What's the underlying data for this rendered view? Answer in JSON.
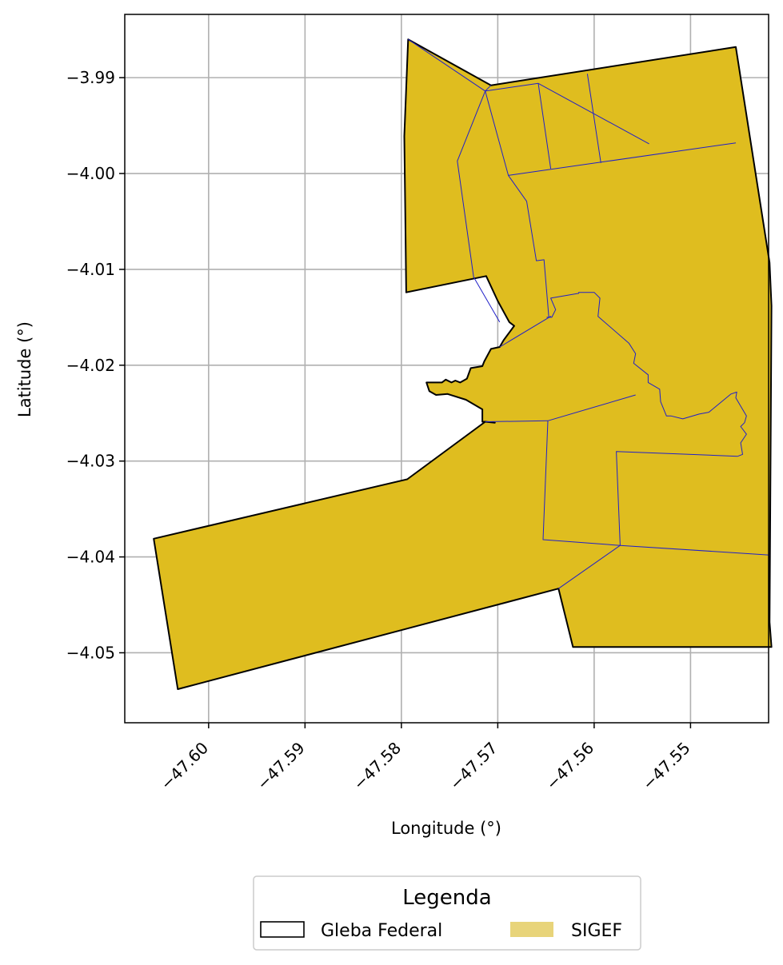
{
  "chart_data": {
    "type": "map",
    "xlabel": "Longitude (°)",
    "ylabel": "Latitude (°)",
    "xlim": [
      -47.6087,
      -47.5419
    ],
    "ylim": [
      -4.0573,
      -3.9834
    ],
    "xticks": [
      -47.6,
      -47.59,
      -47.58,
      -47.57,
      -47.56,
      -47.55
    ],
    "xtick_labels": [
      "−47.60",
      "−47.59",
      "−47.58",
      "−47.57",
      "−47.56",
      "−47.55"
    ],
    "yticks": [
      -3.99,
      -4.0,
      -4.01,
      -4.02,
      -4.03,
      -4.04,
      -4.05
    ],
    "ytick_labels": [
      "−3.99",
      "−4.00",
      "−4.01",
      "−4.02",
      "−4.03",
      "−4.04",
      "−4.05"
    ],
    "grid": true,
    "legend": {
      "title": "Legenda",
      "placement": "bottom-center",
      "entries": [
        {
          "label": "Gleba Federal",
          "style": "outline",
          "edge_color": "#000000"
        },
        {
          "label": "SIGEF",
          "style": "fill",
          "color": "#e8d47a"
        }
      ]
    },
    "layers": [
      {
        "name": "Gleba Federal",
        "fill": "#dfbd1f",
        "stroke": "#000000",
        "polygon": [
          [
            -47.5793,
            -3.986
          ],
          [
            -47.5707,
            -3.9908
          ],
          [
            -47.5453,
            -3.9868
          ],
          [
            -47.5418,
            -4.0093
          ],
          [
            -47.5416,
            -4.0138
          ],
          [
            -47.5418,
            -4.0468
          ],
          [
            -47.5416,
            -4.0494
          ],
          [
            -47.5622,
            -4.0494
          ],
          [
            -47.5637,
            -4.0433
          ],
          [
            -47.6032,
            -4.0538
          ],
          [
            -47.6057,
            -4.0381
          ],
          [
            -47.5794,
            -4.0319
          ],
          [
            -47.5713,
            -4.0259
          ],
          [
            -47.5703,
            -4.026
          ],
          [
            -47.5713,
            -4.0259
          ],
          [
            -47.5712,
            -4.0259
          ],
          [
            -47.5713,
            -4.0259
          ],
          [
            -47.5716,
            -4.0259
          ],
          [
            -47.5716,
            -4.0246
          ],
          [
            -47.5733,
            -4.0236
          ],
          [
            -47.5752,
            -4.023
          ],
          [
            -47.5764,
            -4.0231
          ],
          [
            -47.5771,
            -4.0227
          ],
          [
            -47.5774,
            -4.0218
          ],
          [
            -47.5758,
            -4.0218
          ],
          [
            -47.5754,
            -4.0215
          ],
          [
            -47.5748,
            -4.0218
          ],
          [
            -47.5744,
            -4.0216
          ],
          [
            -47.5739,
            -4.0218
          ],
          [
            -47.5732,
            -4.0214
          ],
          [
            -47.5728,
            -4.0203
          ],
          [
            -47.5716,
            -4.0201
          ],
          [
            -47.5714,
            -4.0196
          ],
          [
            -47.5707,
            -4.0183
          ],
          [
            -47.5698,
            -4.0181
          ],
          [
            -47.5694,
            -4.0174
          ],
          [
            -47.5683,
            -4.0159
          ],
          [
            -47.5688,
            -4.0155
          ],
          [
            -47.57,
            -4.0133
          ],
          [
            -47.5712,
            -4.0107
          ],
          [
            -47.5795,
            -4.0124
          ],
          [
            -47.5796,
            -4.004
          ],
          [
            -47.5797,
            -3.9961
          ]
        ]
      },
      {
        "name": "SIGEF",
        "fill": "none",
        "stroke": "#2020c8",
        "lines": [
          [
            [
              -47.5793,
              -3.986
            ],
            [
              -47.5713,
              -3.9914
            ]
          ],
          [
            [
              -47.5707,
              -3.9908
            ],
            [
              -47.5713,
              -3.9914
            ]
          ],
          [
            [
              -47.5713,
              -3.9914
            ],
            [
              -47.5658,
              -3.9906
            ],
            [
              -47.5543,
              -3.9969
            ]
          ],
          [
            [
              -47.5658,
              -3.9906
            ],
            [
              -47.5645,
              -3.9995
            ]
          ],
          [
            [
              -47.5607,
              -3.9896
            ],
            [
              -47.5593,
              -3.9989
            ]
          ],
          [
            [
              -47.5713,
              -3.9914
            ],
            [
              -47.5742,
              -3.9987
            ],
            [
              -47.5725,
              -4.0108
            ],
            [
              -47.5698,
              -4.0155
            ]
          ],
          [
            [
              -47.5713,
              -3.9914
            ],
            [
              -47.5689,
              -4.0002
            ],
            [
              -47.567,
              -4.0029
            ],
            [
              -47.566,
              -4.0091
            ],
            [
              -47.5652,
              -4.009
            ],
            [
              -47.5647,
              -4.015
            ],
            [
              -47.5649,
              -4.015
            ],
            [
              -47.5644,
              -4.015
            ],
            [
              -47.564,
              -4.0142
            ],
            [
              -47.5645,
              -4.013
            ],
            [
              -47.5616,
              -4.0125
            ],
            [
              -47.5616,
              -4.0124
            ],
            [
              -47.56,
              -4.0124
            ],
            [
              -47.5594,
              -4.013
            ],
            [
              -47.5596,
              -4.0149
            ],
            [
              -47.5564,
              -4.0177
            ],
            [
              -47.5557,
              -4.0188
            ],
            [
              -47.5559,
              -4.0198
            ],
            [
              -47.5544,
              -4.021
            ],
            [
              -47.5544,
              -4.0218
            ],
            [
              -47.5532,
              -4.0225
            ],
            [
              -47.5531,
              -4.0238
            ],
            [
              -47.5525,
              -4.0253
            ],
            [
              -47.552,
              -4.0253
            ],
            [
              -47.5508,
              -4.0256
            ],
            [
              -47.5491,
              -4.0251
            ],
            [
              -47.5481,
              -4.0249
            ],
            [
              -47.5458,
              -4.023
            ],
            [
              -47.5452,
              -4.0228
            ],
            [
              -47.5453,
              -4.0234
            ],
            [
              -47.5442,
              -4.0253
            ],
            [
              -47.5444,
              -4.026
            ],
            [
              -47.5448,
              -4.0264
            ],
            [
              -47.5442,
              -4.0272
            ],
            [
              -47.5448,
              -4.0281
            ],
            [
              -47.5446,
              -4.0293
            ],
            [
              -47.5451,
              -4.0295
            ]
          ],
          [
            [
              -47.5689,
              -4.0002
            ],
            [
              -47.5453,
              -3.9968
            ]
          ],
          [
            [
              -47.5698,
              -4.0181
            ],
            [
              -47.5645,
              -4.0149
            ],
            [
              -47.5647,
              -4.015
            ]
          ],
          [
            [
              -47.5713,
              -4.0259
            ],
            [
              -47.5648,
              -4.0258
            ],
            [
              -47.5557,
              -4.0231
            ]
          ],
          [
            [
              -47.5648,
              -4.0258
            ],
            [
              -47.5653,
              -4.0382
            ],
            [
              -47.5573,
              -4.0388
            ],
            [
              -47.5577,
              -4.029
            ],
            [
              -47.5451,
              -4.0295
            ]
          ],
          [
            [
              -47.5573,
              -4.0388
            ],
            [
              -47.5418,
              -4.0398
            ]
          ],
          [
            [
              -47.5573,
              -4.0388
            ],
            [
              -47.5637,
              -4.0433
            ]
          ]
        ]
      }
    ]
  }
}
